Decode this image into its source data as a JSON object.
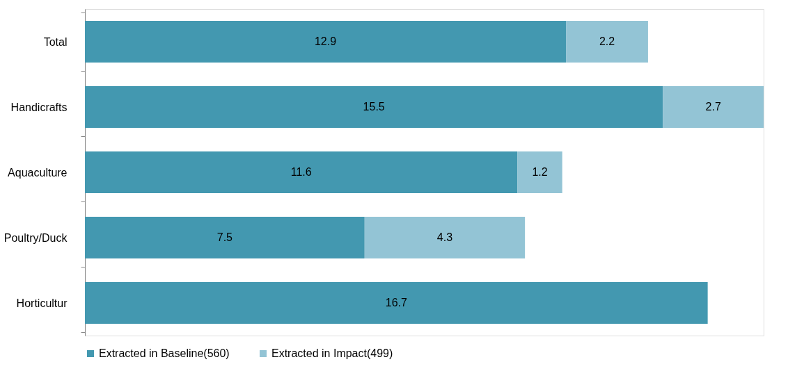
{
  "chart_data": {
    "type": "bar",
    "orientation": "horizontal",
    "stacked": true,
    "data_labels": true,
    "legend": "bottom",
    "grid": false,
    "categories": [
      "Total",
      "Handicrafts",
      "Aquaculture",
      "Poultry/Duck",
      "Horticultur"
    ],
    "series": [
      {
        "name": "Extracted in Baseline(560)",
        "color": "#4398b0",
        "values": [
          12.9,
          15.5,
          11.6,
          7.5,
          16.7
        ]
      },
      {
        "name": "Extracted in Impact(499)",
        "color": "#93c4d5",
        "values": [
          2.2,
          2.7,
          1.2,
          4.3,
          null
        ]
      }
    ]
  }
}
